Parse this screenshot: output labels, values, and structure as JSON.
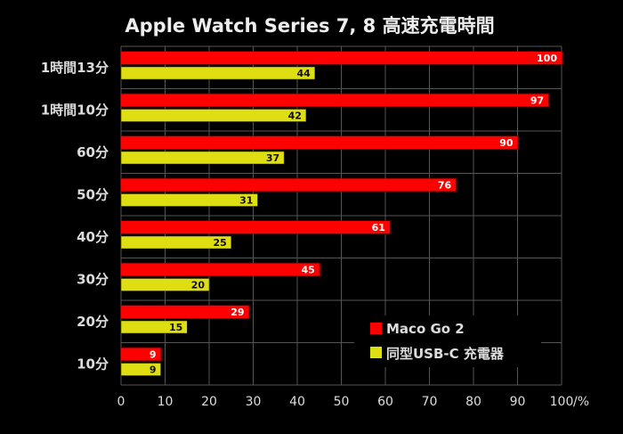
{
  "chart_data": {
    "type": "bar",
    "orientation": "horizontal",
    "title": "Apple Watch Series 7, 8  高速充電時間",
    "categories": [
      "1時間13分",
      "1時間10分",
      "60分",
      "50分",
      "40分",
      "30分",
      "20分",
      "10分"
    ],
    "series": [
      {
        "name": "Maco Go 2",
        "color": "#ff0000",
        "values": [
          100,
          97,
          90,
          76,
          61,
          45,
          29,
          9
        ]
      },
      {
        "name": "同型USB-C 充電器",
        "color": "#dede12",
        "values": [
          44,
          42,
          37,
          31,
          25,
          20,
          15,
          9
        ]
      }
    ],
    "x_ticks": [
      "0",
      "10",
      "20",
      "30",
      "40",
      "50",
      "60",
      "70",
      "80",
      "90",
      "100"
    ],
    "x_unit": "/%",
    "xlim": [
      0,
      100
    ],
    "grid": true,
    "legend_position": "bottom-right",
    "background": "#000000"
  }
}
